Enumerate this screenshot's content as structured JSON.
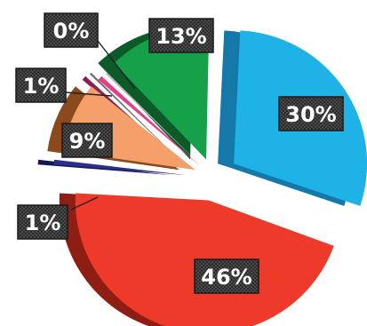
{
  "chart_data": {
    "type": "pie",
    "title": "",
    "legend": "none",
    "slices": [
      {
        "label": "30%",
        "value": 30,
        "color": "#1fb2e6",
        "side": "#1478a8"
      },
      {
        "label": "46%",
        "value": 46,
        "color": "#ee3a2a",
        "side": "#8e1d14"
      },
      {
        "label": "1%",
        "value": 1,
        "color": "#2a2f8c",
        "side": "#151850"
      },
      {
        "label": "9%",
        "value": 9,
        "color": "#f5a06a",
        "side": "#8a4a1e"
      },
      {
        "label": "1%",
        "value": 1,
        "color": "#e0408c",
        "side": "#8c1f55"
      },
      {
        "label": "0%",
        "value": 0,
        "color": "#bdbdbd",
        "side": "#6e6e6e"
      },
      {
        "label": "13%",
        "value": 13,
        "color": "#16a04a",
        "side": "#0b5a28"
      }
    ]
  }
}
